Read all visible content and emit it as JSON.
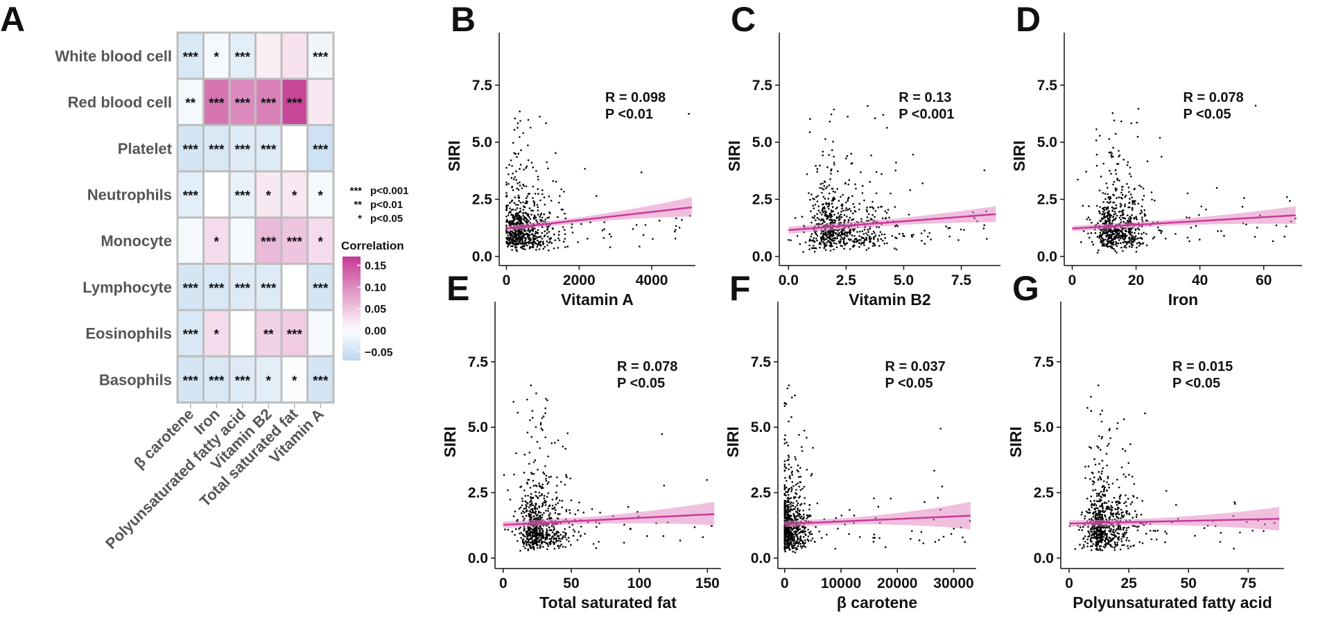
{
  "figure": {
    "heatmap": {
      "panel_label": "A",
      "rows": [
        "White blood cell",
        "Red blood cell",
        "Platelet",
        "Neutrophils",
        "Monocyte",
        "Lymphocyte",
        "Eosinophils",
        "Basophils"
      ],
      "cols": [
        "β carotene",
        "Iron",
        "Polyunsaturated fatty acid",
        "Vitamin B2",
        "Total saturated fat",
        "Vitamin A"
      ]
    },
    "significance_legend": [
      {
        "stars": "***",
        "label": "p<0.001"
      },
      {
        "stars": "**",
        "label": "p<0.01"
      },
      {
        "stars": "*",
        "label": "p<0.05"
      }
    ],
    "colorbar": {
      "title": "Correlation",
      "ticks": [
        "0.15",
        "0.10",
        "0.05",
        "0.00",
        "−0.05"
      ],
      "tick_values": [
        0.15,
        0.1,
        0.05,
        0.0,
        -0.05
      ],
      "min": -0.07,
      "max": 0.17,
      "low_color": "#bcd7ee",
      "mid_color": "#ffffff",
      "high_color": "#c53a92"
    },
    "scatter_style": {
      "line_color": "#c9389a",
      "band_color": "#e48ac3",
      "point_color": "#000000"
    }
  },
  "chart_data": [
    {
      "type": "heatmap",
      "title": "A",
      "rows": [
        "White blood cell",
        "Red blood cell",
        "Platelet",
        "Neutrophils",
        "Monocyte",
        "Lymphocyte",
        "Eosinophils",
        "Basophils"
      ],
      "columns": [
        "β carotene",
        "Iron",
        "Polyunsaturated fatty acid",
        "Vitamin B2",
        "Total saturated fat",
        "Vitamin A"
      ],
      "values": [
        [
          -0.04,
          -0.01,
          -0.03,
          0.015,
          0.025,
          -0.015
        ],
        [
          -0.01,
          0.12,
          0.1,
          0.11,
          0.16,
          0.02
        ],
        [
          -0.045,
          -0.04,
          -0.035,
          -0.035,
          0.0,
          -0.05
        ],
        [
          -0.03,
          0.0,
          -0.025,
          0.02,
          0.02,
          -0.01
        ],
        [
          -0.01,
          0.03,
          -0.01,
          0.06,
          0.05,
          0.03
        ],
        [
          -0.045,
          -0.04,
          -0.035,
          -0.035,
          0.0,
          -0.045
        ],
        [
          -0.04,
          0.03,
          0.0,
          0.04,
          0.045,
          -0.01
        ],
        [
          -0.045,
          -0.04,
          -0.035,
          -0.03,
          -0.005,
          -0.045
        ]
      ],
      "significance": [
        [
          "***",
          "*",
          "***",
          "",
          "",
          "***"
        ],
        [
          "**",
          "***",
          "***",
          "***",
          "***",
          ""
        ],
        [
          "***",
          "***",
          "***",
          "***",
          "",
          "***"
        ],
        [
          "***",
          "",
          "***",
          "*",
          "*",
          "*"
        ],
        [
          "",
          "*",
          "",
          "***",
          "***",
          "*"
        ],
        [
          "***",
          "***",
          "***",
          "***",
          "",
          "***"
        ],
        [
          "***",
          "*",
          "",
          "**",
          "***",
          ""
        ],
        [
          "***",
          "***",
          "***",
          "*",
          "*",
          "***"
        ]
      ],
      "colorbar_label": "Correlation"
    },
    {
      "type": "scatter",
      "title": "B",
      "xlabel": "Vitamin A",
      "ylabel": "SIRI",
      "xlim": [
        -200,
        5200
      ],
      "ylim": [
        -0.4,
        9.8
      ],
      "xticks": [
        0,
        2000,
        4000
      ],
      "xtick_labels": [
        "0",
        "2000",
        "4000"
      ],
      "yticks": [
        0,
        2.5,
        5,
        7.5
      ],
      "ytick_labels": [
        "0.0",
        "2.5",
        "5.0",
        "7.5"
      ],
      "annotation": [
        "R = 0.098",
        "P <0.01"
      ],
      "fit": {
        "x": [
          0,
          5100
        ],
        "y": [
          1.22,
          2.15
        ],
        "ci_lo": [
          1.1,
          1.75
        ],
        "ci_hi": [
          1.34,
          2.6
        ]
      },
      "points_summary": {
        "n": 700,
        "x_center": 400,
        "x_spread": 550,
        "x_max": 5100,
        "y_center": 1.2,
        "y_max": 6.6,
        "seed": 11
      }
    },
    {
      "type": "scatter",
      "title": "C",
      "xlabel": "Vitamin B2",
      "ylabel": "SIRI",
      "xlim": [
        -0.4,
        9.2
      ],
      "ylim": [
        -0.4,
        9.8
      ],
      "xticks": [
        0,
        2.5,
        5,
        7.5
      ],
      "xtick_labels": [
        "0.0",
        "2.5",
        "5.0",
        "7.5"
      ],
      "yticks": [
        0,
        2.5,
        5,
        7.5
      ],
      "ytick_labels": [
        "0.0",
        "2.5",
        "5.0",
        "7.5"
      ],
      "annotation": [
        "R = 0.13",
        "P <0.001"
      ],
      "fit": {
        "x": [
          0,
          9
        ],
        "y": [
          1.15,
          1.85
        ],
        "ci_lo": [
          1.0,
          1.5
        ],
        "ci_hi": [
          1.3,
          2.2
        ]
      },
      "points_summary": {
        "n": 700,
        "x_center": 2.0,
        "x_spread": 1.4,
        "x_max": 9.0,
        "y_center": 1.2,
        "y_max": 6.6,
        "seed": 23
      }
    },
    {
      "type": "scatter",
      "title": "D",
      "xlabel": "Iron",
      "ylabel": "SIRI",
      "xlim": [
        -2.5,
        72
      ],
      "ylim": [
        -0.4,
        9.8
      ],
      "xticks": [
        0,
        20,
        40,
        60
      ],
      "xtick_labels": [
        "0",
        "20",
        "40",
        "60"
      ],
      "yticks": [
        0,
        2.5,
        5,
        7.5
      ],
      "ytick_labels": [
        "0.0",
        "2.5",
        "5.0",
        "7.5"
      ],
      "annotation": [
        "R = 0.078",
        "P <0.05"
      ],
      "fit": {
        "x": [
          0,
          70
        ],
        "y": [
          1.22,
          1.8
        ],
        "ci_lo": [
          1.1,
          1.42
        ],
        "ci_hi": [
          1.34,
          2.2
        ]
      },
      "points_summary": {
        "n": 700,
        "x_center": 13,
        "x_spread": 7,
        "x_max": 70,
        "y_center": 1.2,
        "y_max": 6.6,
        "seed": 37
      }
    },
    {
      "type": "scatter",
      "title": "E",
      "xlabel": "Total saturated fat",
      "ylabel": "SIRI",
      "xlim": [
        -6,
        160
      ],
      "ylim": [
        -0.4,
        9.8
      ],
      "xticks": [
        0,
        50,
        100,
        150
      ],
      "xtick_labels": [
        "0",
        "50",
        "100",
        "150"
      ],
      "yticks": [
        0,
        2.5,
        5,
        7.5
      ],
      "ytick_labels": [
        "0.0",
        "2.5",
        "5.0",
        "7.5"
      ],
      "annotation": [
        "R = 0.078",
        "P <0.05"
      ],
      "fit": {
        "x": [
          0,
          155
        ],
        "y": [
          1.27,
          1.68
        ],
        "ci_lo": [
          1.15,
          1.25
        ],
        "ci_hi": [
          1.4,
          2.15
        ]
      },
      "points_summary": {
        "n": 700,
        "x_center": 25,
        "x_spread": 14,
        "x_max": 155,
        "y_center": 1.2,
        "y_max": 6.6,
        "seed": 53
      }
    },
    {
      "type": "scatter",
      "title": "F",
      "xlabel": "β carotene",
      "ylabel": "SIRI",
      "xlim": [
        -1200,
        34000
      ],
      "ylim": [
        -0.4,
        9.8
      ],
      "xticks": [
        0,
        10000,
        20000,
        30000
      ],
      "xtick_labels": [
        "0",
        "10000",
        "20000",
        "30000"
      ],
      "yticks": [
        0,
        2.5,
        5,
        7.5
      ],
      "ytick_labels": [
        "0.0",
        "2.5",
        "5.0",
        "7.5"
      ],
      "annotation": [
        "R = 0.037",
        "P <0.05"
      ],
      "fit": {
        "x": [
          0,
          33000
        ],
        "y": [
          1.3,
          1.62
        ],
        "ci_lo": [
          1.18,
          1.1
        ],
        "ci_hi": [
          1.42,
          2.15
        ]
      },
      "points_summary": {
        "n": 700,
        "x_center": 800,
        "x_spread": 2200,
        "x_max": 33000,
        "y_center": 1.2,
        "y_max": 6.6,
        "seed": 71
      }
    },
    {
      "type": "scatter",
      "title": "G",
      "xlabel": "Polyunsaturated fatty acid",
      "ylabel": "SIRI",
      "xlim": [
        -3.5,
        90
      ],
      "ylim": [
        -0.4,
        9.8
      ],
      "xticks": [
        0,
        25,
        50,
        75
      ],
      "xtick_labels": [
        "0",
        "25",
        "50",
        "75"
      ],
      "yticks": [
        0,
        2.5,
        5,
        7.5
      ],
      "ytick_labels": [
        "0.0",
        "2.5",
        "5.0",
        "7.5"
      ],
      "annotation": [
        "R = 0.015",
        "P <0.05"
      ],
      "fit": {
        "x": [
          0,
          88
        ],
        "y": [
          1.32,
          1.5
        ],
        "ci_lo": [
          1.2,
          1.05
        ],
        "ci_hi": [
          1.44,
          1.95
        ]
      },
      "points_summary": {
        "n": 700,
        "x_center": 14,
        "x_spread": 8,
        "x_max": 88,
        "y_center": 1.2,
        "y_max": 6.6,
        "seed": 89
      }
    }
  ]
}
